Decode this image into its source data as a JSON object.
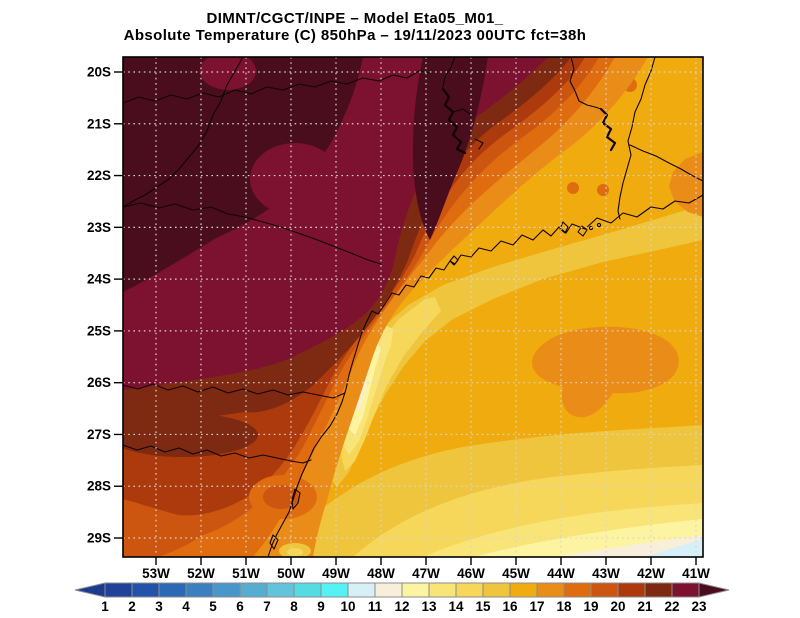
{
  "title": {
    "line1": "DIMNT/CGCT/INPE –  Model Eta05_M01_",
    "line2": "Absolute Temperature (C) 850hPa –  19/11/2023 00UTC fct=38h"
  },
  "axes": {
    "lat_labels": [
      "20S",
      "21S",
      "22S",
      "23S",
      "24S",
      "25S",
      "26S",
      "27S",
      "28S",
      "29S"
    ],
    "lon_labels": [
      "53W",
      "52W",
      "51W",
      "50W",
      "49W",
      "48W",
      "47W",
      "46W",
      "45W",
      "44W",
      "43W",
      "42W",
      "41W"
    ]
  },
  "colorbar": {
    "numbers": [
      "1",
      "2",
      "3",
      "4",
      "5",
      "6",
      "7",
      "8",
      "9",
      "10",
      "11",
      "12",
      "13",
      "14",
      "15",
      "16",
      "17",
      "18",
      "19",
      "20",
      "21",
      "22",
      "23"
    ],
    "cell_colors": [
      "#21409a",
      "#2353a8",
      "#2c69b4",
      "#3a80c0",
      "#4897ca",
      "#55add2",
      "#63c3dc",
      "#55dce2",
      "#55f2f5",
      "#d7f0f8",
      "#f8efda",
      "#fcf4a0",
      "#f9e478",
      "#f6d75a",
      "#eec53c",
      "#f0ab0f",
      "#ea8d18",
      "#e06c10",
      "#cc5510",
      "#ad3a0c",
      "#7e2a12",
      "#7c1230"
    ],
    "left_arrow_color": "#1c3a8e",
    "right_arrow_color": "#4a0d1d",
    "outline_color": "#8c8c8c"
  },
  "map": {
    "grid_color": "#d6d6d6",
    "frame_color": "#000000",
    "coastline_color": "#120404"
  },
  "chart_data": {
    "type": "heatmap",
    "title": "DIMNT/CGCT/INPE – Model Eta05_M01_",
    "subtitle": "Absolute Temperature (C) 850hPa – 19/11/2023 00UTC fct=38h",
    "variable": "Absolute Temperature (C) at 850 hPa",
    "model": "Eta05_M01_",
    "valid": "19/11/2023 00UTC fct=38h",
    "x_ticks": [
      "53W",
      "52W",
      "51W",
      "50W",
      "49W",
      "48W",
      "47W",
      "46W",
      "45W",
      "44W",
      "43W",
      "42W",
      "41W"
    ],
    "y_ticks": [
      "20S",
      "21S",
      "22S",
      "23S",
      "24S",
      "25S",
      "26S",
      "27S",
      "28S",
      "29S"
    ],
    "grid": true,
    "legend_position": "bottom",
    "colorbar_levels": [
      1,
      2,
      3,
      4,
      5,
      6,
      7,
      8,
      9,
      10,
      11,
      12,
      13,
      14,
      15,
      16,
      17,
      18,
      19,
      20,
      21,
      22,
      23
    ],
    "colorbar_colors": [
      "#21409a",
      "#2353a8",
      "#2c69b4",
      "#3a80c0",
      "#4897ca",
      "#55add2",
      "#63c3dc",
      "#55dce2",
      "#55f2f5",
      "#d7f0f8",
      "#f8efda",
      "#fcf4a0",
      "#f9e478",
      "#f6d75a",
      "#eec53c",
      "#f0ab0f",
      "#ea8d18",
      "#e06c10",
      "#cc5510",
      "#ad3a0c",
      "#7e2a12",
      "#7c1230"
    ],
    "approx_region_values_c": {
      "northwest_interior": "22 to 23+",
      "top_edge_center": "22-23",
      "sao_paulo_coastal_gradient": "17-22 (tightly packed)",
      "northeast_corner": "16-18",
      "southeast_ocean": "14-16 with 17 patch near 43W/26S",
      "parana_coast_tongue": "11-13",
      "southwest_corner": "17-20 with 21 spots",
      "bottom_right_corner": "10-12"
    }
  }
}
